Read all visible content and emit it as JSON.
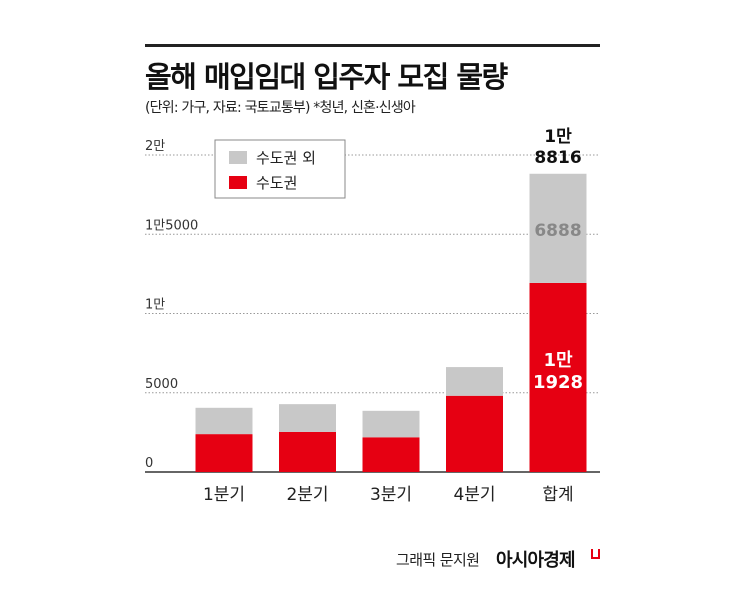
{
  "header": {
    "title": "올해 매입임대 입주자 모집 물량",
    "subtitle": "(단위: 가구, 자료: 국토교통부)  *청년, 신혼·신생아"
  },
  "footer": {
    "credit": "그래픽 문지원",
    "brand": "아시아경제"
  },
  "colors": {
    "capital": "#e60012",
    "non_capital": "#c8c8c8"
  },
  "chart_data": {
    "type": "bar",
    "stacked": true,
    "categories": [
      "1분기",
      "2분기",
      "3분기",
      "4분기",
      "합계"
    ],
    "series": [
      {
        "name": "수도권",
        "values": [
          2390,
          2530,
          2190,
          4810,
          11928
        ],
        "color": "#e60012"
      },
      {
        "name": "수도권 외",
        "values": [
          1660,
          1750,
          1670,
          1810,
          6888
        ],
        "color": "#c8c8c8"
      }
    ],
    "yticks": [
      {
        "value": 0,
        "label": "0"
      },
      {
        "value": 5000,
        "label": "5000"
      },
      {
        "value": 10000,
        "label": "1만"
      },
      {
        "value": 15000,
        "label": "1만5000"
      },
      {
        "value": 20000,
        "label": "2만"
      }
    ],
    "ylim": [
      0,
      20000
    ],
    "grid": true,
    "legend": "top-left",
    "data_labels": {
      "total_line1": "1만",
      "total_line2": "8816",
      "non_capital_total": "6888",
      "capital_line1": "1만",
      "capital_line2": "1928"
    }
  }
}
